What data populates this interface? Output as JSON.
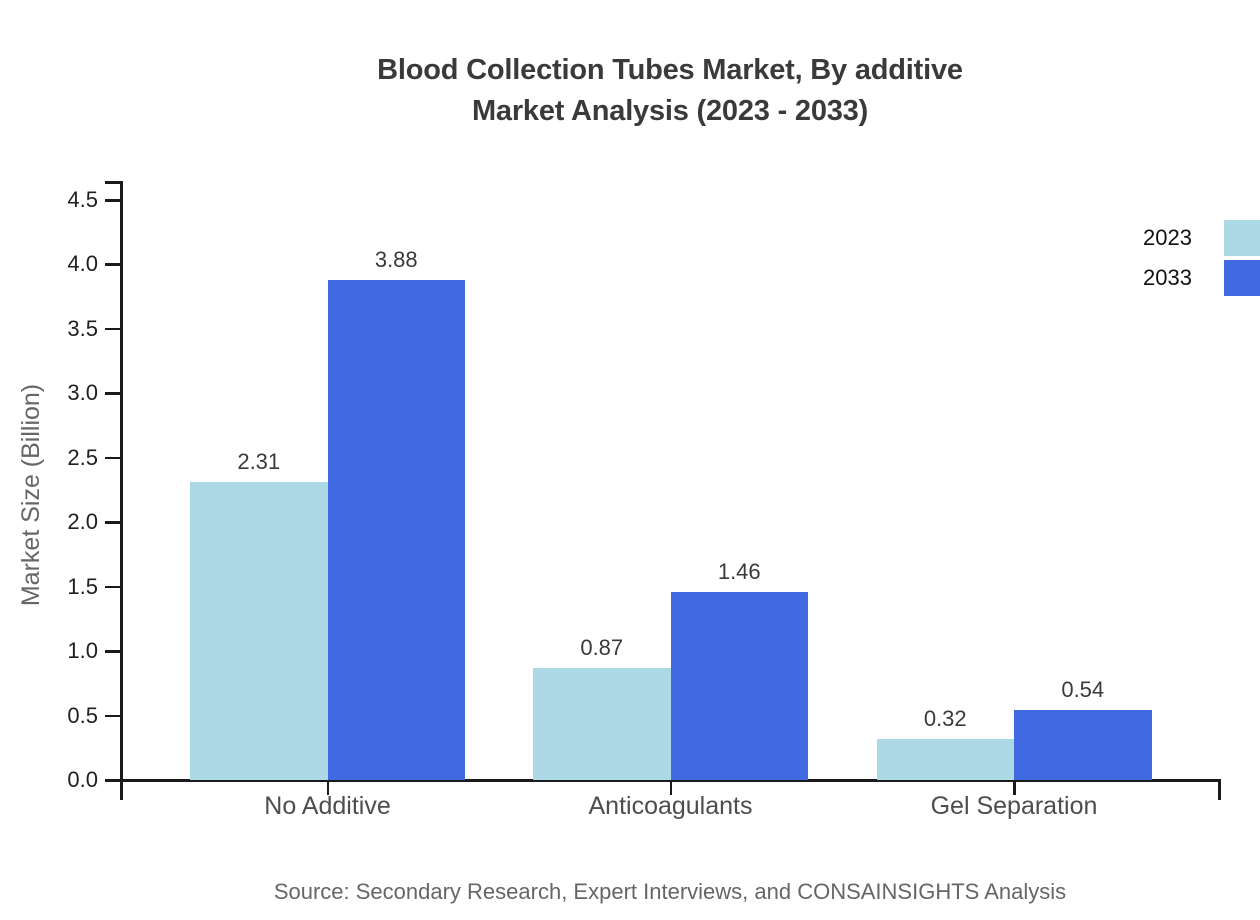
{
  "title": {
    "line1": "Blood Collection Tubes Market, By additive",
    "line2": "Market Analysis (2023 - 2033)"
  },
  "chart_data": {
    "type": "bar",
    "title": "Blood Collection Tubes Market, By additive Market Analysis (2023 - 2033)",
    "categories": [
      "No Additive",
      "Anticoagulants",
      "Gel Separation"
    ],
    "series": [
      {
        "name": "2023",
        "color": "#ADD8E6",
        "values": [
          2.31,
          0.87,
          0.32
        ]
      },
      {
        "name": "2033",
        "color": "#4169E1",
        "values": [
          3.88,
          1.46,
          0.54
        ]
      }
    ],
    "xlabel": "",
    "ylabel": "Market Size (Billion)",
    "ylim": [
      0,
      4.5
    ],
    "yticks": [
      0.0,
      0.5,
      1.0,
      1.5,
      2.0,
      2.5,
      3.0,
      3.5,
      4.0,
      4.5
    ],
    "grid": false,
    "legend_position": "top-right",
    "value_labels": true,
    "value_label_decimals": 2,
    "tick_label_decimals": 1
  },
  "footer": {
    "source": "Source: Secondary Research, Expert Interviews, and CONSAINSIGHTS Analysis"
  }
}
